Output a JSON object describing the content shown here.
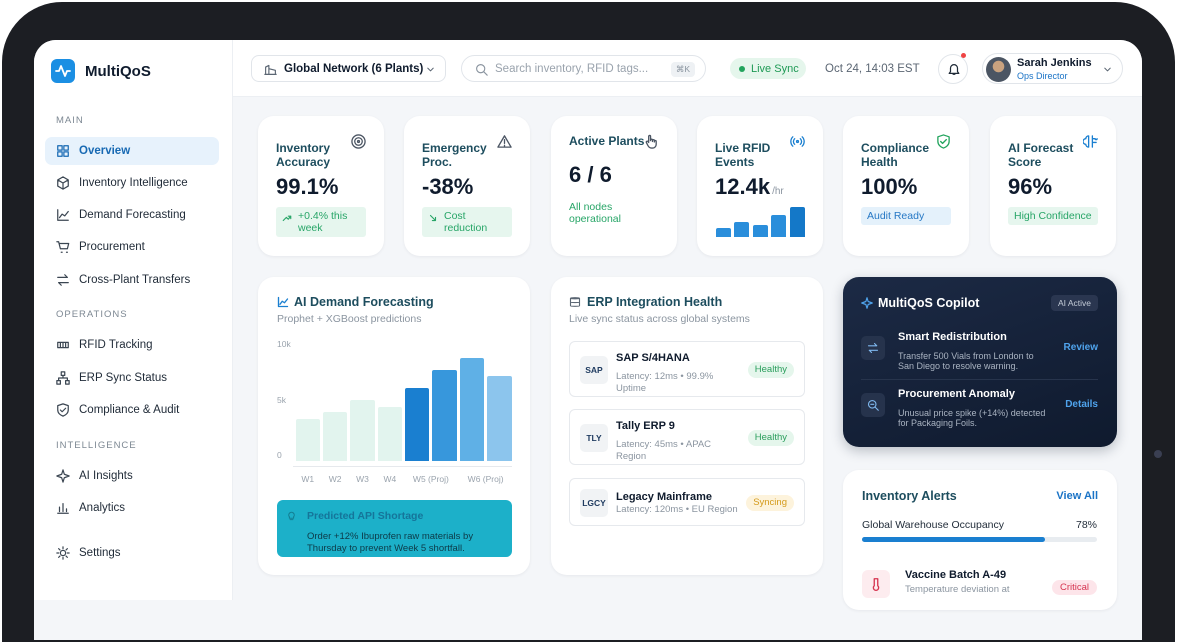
{
  "sidebar": {
    "brand": "MultiQoS",
    "sections": [
      {
        "title": "MAIN",
        "items": [
          "Overview",
          "Inventory Intelligence",
          "Demand Forecasting",
          "Procurement",
          "Cross-Plant Transfers"
        ]
      },
      {
        "title": "OPERATIONS",
        "items": [
          "RFID Tracking",
          "ERP Sync Status",
          "Compliance & Audit"
        ]
      },
      {
        "title": "INTELLIGENCE",
        "items": [
          "AI Insights",
          "Analytics"
        ]
      }
    ],
    "settings": "Settings"
  },
  "header": {
    "plant_selector": "Global Network (6 Plants)",
    "search_placeholder": "Search inventory, RFID tags...",
    "shortcut": "⌘K",
    "sync_status": "Live Sync",
    "datetime": "Oct 24, 14:03 EST",
    "user": {
      "name": "Sarah Jenkins",
      "role": "Ops Director"
    }
  },
  "kpis": [
    {
      "label": "Inventory Accuracy",
      "value": "99.1%",
      "badge": "+0.4% this week"
    },
    {
      "label": "Emergency Proc.",
      "value": "-38%",
      "badge": "Cost reduction"
    },
    {
      "label": "Active Plants",
      "value": "6 / 6",
      "note": "All nodes operational"
    },
    {
      "label": "Live RFID Events",
      "value": "12.4k",
      "unit": "/hr",
      "sparkline": [
        9,
        15,
        12,
        22,
        30
      ]
    },
    {
      "label": "Compliance Health",
      "value": "100%",
      "badge": "Audit Ready"
    },
    {
      "label": "AI Forecast Score",
      "value": "96%",
      "badge": "High Confidence"
    }
  ],
  "demand_forecasting": {
    "title": "AI Demand Forecasting",
    "subtitle": "Prophet + XGBoost predictions",
    "alert": {
      "title": "Predicted API Shortage",
      "text": "Order +12% Ibuprofen raw materials by Thursday to prevent Week 5 shortfall."
    }
  },
  "chart_data": {
    "type": "bar",
    "categories": [
      "W1",
      "W2",
      "W3",
      "W4",
      "W5 (Proj)",
      null,
      "W6 (Proj)",
      null
    ],
    "values": [
      3800,
      4400,
      5500,
      4900,
      6600,
      8200,
      9300,
      7700
    ],
    "colors": [
      "#e2f4ee",
      "#e2f4ee",
      "#e2f4ee",
      "#e2f4ee",
      "#1a7fd0",
      "#3797dc",
      "#5fb0e6",
      "#8cc5ed"
    ],
    "ylim": [
      0,
      10000
    ],
    "yticks": [
      0,
      {
        "value": 5000,
        "label": "5k"
      },
      {
        "value": 10000,
        "label": "10k"
      }
    ]
  },
  "erp": {
    "title": "ERP Integration Health",
    "subtitle": "Live sync status across global systems",
    "systems": [
      {
        "code": "SAP",
        "name": "SAP S/4HANA",
        "detail": "Latency: 12ms • 99.9% Uptime",
        "status": "Healthy"
      },
      {
        "code": "TLY",
        "name": "Tally ERP 9",
        "detail": "Latency: 45ms • APAC Region",
        "status": "Healthy"
      },
      {
        "code": "LGCY",
        "name": "Legacy Mainframe",
        "detail": "Latency: 120ms • EU Region",
        "status": "Syncing"
      }
    ]
  },
  "copilot": {
    "title": "MultiQoS Copilot",
    "badge": "AI Active",
    "items": [
      {
        "title": "Smart Redistribution",
        "text": "Transfer 500 Vials from London to San Diego to resolve warning.",
        "action": "Review"
      },
      {
        "title": "Procurement Anomaly",
        "text": "Unusual price spike (+14%) detected for Packaging Foils.",
        "action": "Details"
      }
    ]
  },
  "inventory_alerts": {
    "title": "Inventory Alerts",
    "action": "View All",
    "occupancy": {
      "label": "Global Warehouse Occupancy",
      "value": 78,
      "value_label": "78%"
    },
    "items": [
      {
        "title": "Vaccine Batch A-49",
        "text": "Temperature deviation at",
        "status": "Critical"
      }
    ]
  }
}
